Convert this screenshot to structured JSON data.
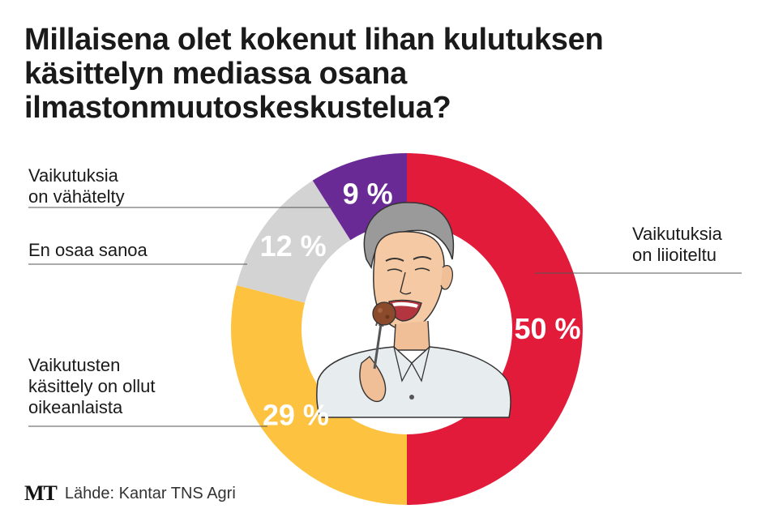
{
  "title_lines": [
    "Millaisena olet kokenut lihan kulutuksen",
    "käsittelyn mediassa osana",
    "ilmastonmuutoskeskustelua?"
  ],
  "chart_data": {
    "type": "pie",
    "variant": "donut",
    "unit": "%",
    "slices": [
      {
        "label_lines": [
          "Vaikutuksia",
          "on liioiteltu"
        ],
        "value": 50,
        "display": "50 %",
        "color": "#e31b3b"
      },
      {
        "label_lines": [
          "Vaikutusten",
          "käsittely on ollut",
          "oikeanlaista"
        ],
        "value": 29,
        "display": "29 %",
        "color": "#fdc23f"
      },
      {
        "label_lines": [
          "En osaa sanoa"
        ],
        "value": 12,
        "display": "12 %",
        "color": "#d3d3d3"
      },
      {
        "label_lines": [
          "Vaikutuksia",
          "on vähätelty"
        ],
        "value": 9,
        "display": "9 %",
        "color": "#6a2a96"
      }
    ],
    "start": "top",
    "direction": "clockwise",
    "center_illustration": "person-eating-meatball-illustration"
  },
  "footer": {
    "logo": "MT",
    "source": "Lähde: Kantar TNS Agri"
  }
}
